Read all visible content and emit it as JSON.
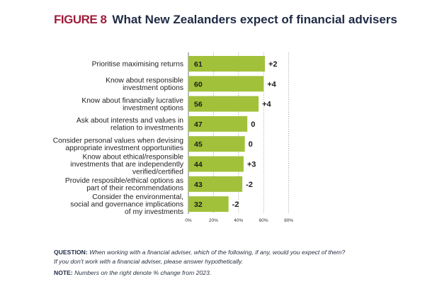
{
  "figure": {
    "label": "FIGURE 8",
    "title": "What New Zealanders expect of financial advisers"
  },
  "chart_data": {
    "type": "bar",
    "orientation": "horizontal",
    "bar_color": "#a2c13b",
    "categories": [
      [
        "Prioritise maximising returns"
      ],
      [
        "Know about responsible",
        "investment options"
      ],
      [
        "Know about financially lucrative",
        "investment options"
      ],
      [
        "Ask about interests and values in",
        "relation to investments"
      ],
      [
        "Consider personal values when devising",
        "appropriate investment opportunities"
      ],
      [
        "Know about ethical/responsible",
        "investments that are independently",
        "verified/certified"
      ],
      [
        "Provide resposible/ethical options as",
        "part of their recommendations"
      ],
      [
        "Consider the environmental,",
        "social and governance implications",
        "of my investments"
      ]
    ],
    "values": [
      61,
      60,
      56,
      47,
      45,
      44,
      43,
      32
    ],
    "change_labels": [
      "+2",
      "+4",
      "+4",
      "0",
      "0",
      "+3",
      "-2",
      "-2"
    ],
    "xlim": [
      0,
      80
    ],
    "xticks": [
      0,
      20,
      40,
      60,
      80
    ],
    "xtick_labels": [
      "0%",
      "20%",
      "40%",
      "60%",
      "80%"
    ],
    "grid": "vertical dotted"
  },
  "footnotes": {
    "question_label": "QUESTION:",
    "question_line1": "When working with a financial adviser, which of the following, if any, would you expect of them?",
    "question_line2": "If you don't work with a financial adviser, please answer hypothetically.",
    "note_label": "NOTE:",
    "note_text": "Numbers on the right denote % change from 2023."
  }
}
